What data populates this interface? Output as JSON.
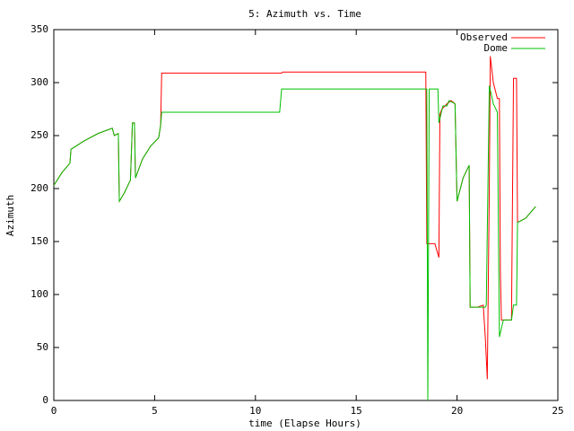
{
  "chart_data": {
    "type": "line",
    "title": "5: Azimuth vs. Time",
    "xlabel": "time (Elapse Hours)",
    "ylabel": "Azimuth",
    "xlim": [
      0,
      25
    ],
    "xticks": [
      0,
      5,
      10,
      15,
      20,
      25
    ],
    "ylim": [
      0,
      350
    ],
    "yticks": [
      0,
      50,
      100,
      150,
      200,
      250,
      300,
      350
    ],
    "legend": "top-right",
    "series": [
      {
        "name": "Observed",
        "color": "#ff0000",
        "x": [
          0,
          0.4,
          0.8,
          0.85,
          1.5,
          2.2,
          2.9,
          3.0,
          3.2,
          3.25,
          3.5,
          3.8,
          3.9,
          4.0,
          4.05,
          4.4,
          4.8,
          5.2,
          5.3,
          5.35,
          11.3,
          11.35,
          18.45,
          18.5,
          18.9,
          19.1,
          19.15,
          19.25,
          19.5,
          19.7,
          19.9,
          20.0,
          20.3,
          20.6,
          20.65,
          21.0,
          21.3,
          21.4,
          21.5,
          21.6,
          21.65,
          21.8,
          22.0,
          22.1,
          22.15,
          22.2,
          22.7,
          22.8,
          22.95,
          23.0,
          23.4,
          23.9
        ],
        "values": [
          203,
          215,
          224,
          237,
          245,
          252,
          257,
          250,
          252,
          188,
          196,
          208,
          262,
          262,
          210,
          228,
          240,
          248,
          260,
          309,
          309,
          310,
          310,
          148,
          148,
          135,
          270,
          275,
          280,
          283,
          280,
          188,
          210,
          222,
          88,
          88,
          90,
          60,
          20,
          200,
          325,
          300,
          285,
          285,
          120,
          76,
          76,
          304,
          304,
          168,
          172,
          183
        ]
      },
      {
        "name": "Dome",
        "color": "#00c000",
        "x": [
          0,
          0.4,
          0.8,
          0.85,
          1.5,
          2.2,
          2.9,
          3.0,
          3.2,
          3.25,
          3.5,
          3.8,
          3.9,
          4.0,
          4.05,
          4.4,
          4.8,
          5.2,
          5.3,
          5.35,
          11.2,
          11.3,
          18.5,
          18.55,
          18.62,
          19.05,
          19.1,
          19.3,
          19.5,
          19.6,
          19.9,
          20.0,
          20.3,
          20.6,
          20.65,
          21.4,
          21.45,
          21.6,
          21.8,
          22.0,
          22.1,
          22.3,
          22.7,
          22.8,
          22.95,
          23.0,
          23.4,
          23.9
        ],
        "values": [
          203,
          215,
          224,
          237,
          245,
          252,
          257,
          250,
          252,
          188,
          196,
          208,
          262,
          262,
          210,
          228,
          240,
          248,
          260,
          272,
          272,
          294,
          294,
          0,
          294,
          294,
          262,
          278,
          278,
          283,
          280,
          188,
          210,
          222,
          88,
          88,
          90,
          297,
          280,
          272,
          60,
          76,
          76,
          90,
          90,
          168,
          172,
          183
        ]
      }
    ]
  }
}
